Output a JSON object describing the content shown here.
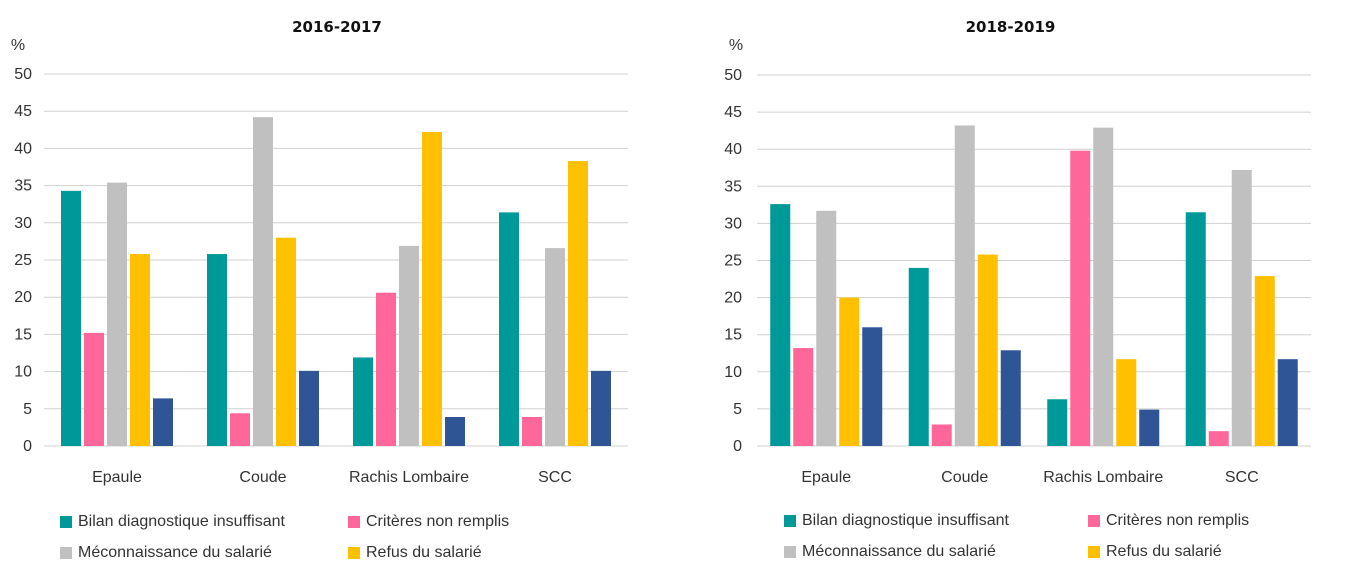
{
  "colors": {
    "bilan": "#009999",
    "criteres": "#ff6699",
    "meconnaissance": "#c0c0c0",
    "refus": "#ffc000",
    "fifth": "#2f5597",
    "grid": "#d0d0d0"
  },
  "chart_data": [
    {
      "type": "bar",
      "title": "2016-2017",
      "ylabel": "%",
      "ylim": [
        0,
        50
      ],
      "yticks": [
        "0",
        "5",
        "10",
        "15",
        "20",
        "25",
        "30",
        "35",
        "40",
        "45",
        "50"
      ],
      "grid": true,
      "legend_position": "bottom",
      "categories": [
        "Epaule",
        "Coude",
        "Rachis Lombaire",
        "SCC"
      ],
      "series": [
        {
          "name": "Bilan diagnostique insuffisant",
          "color": "#009999",
          "values": [
            34.3,
            25.8,
            11.9,
            31.4
          ]
        },
        {
          "name": "Critères non remplis",
          "color": "#ff6699",
          "values": [
            15.2,
            4.4,
            20.6,
            3.9
          ]
        },
        {
          "name": "Méconnaissance du salarié",
          "color": "#c0c0c0",
          "values": [
            35.4,
            44.2,
            26.9,
            26.6
          ]
        },
        {
          "name": "Refus du salarié",
          "color": "#ffc000",
          "values": [
            25.8,
            28.0,
            42.2,
            38.3
          ]
        },
        {
          "color": "#2f5597",
          "values": [
            6.4,
            10.1,
            3.9,
            10.1
          ]
        }
      ]
    },
    {
      "type": "bar",
      "title": "2018-2019",
      "ylabel": "%",
      "ylim": [
        0,
        50
      ],
      "yticks": [
        "0",
        "5",
        "10",
        "15",
        "20",
        "25",
        "30",
        "35",
        "40",
        "45",
        "50"
      ],
      "grid": true,
      "legend_position": "bottom",
      "categories": [
        "Epaule",
        "Coude",
        "Rachis Lombaire",
        "SCC"
      ],
      "series": [
        {
          "name": "Bilan diagnostique insuffisant",
          "color": "#009999",
          "values": [
            32.6,
            24.0,
            6.3,
            31.5
          ]
        },
        {
          "name": "Critères non remplis",
          "color": "#ff6699",
          "values": [
            13.2,
            2.9,
            39.8,
            2.0
          ]
        },
        {
          "name": "Méconnaissance du salarié",
          "color": "#c0c0c0",
          "values": [
            31.7,
            43.2,
            42.9,
            37.2
          ]
        },
        {
          "name": "Refus du salarié",
          "color": "#ffc000",
          "values": [
            20.0,
            25.8,
            11.7,
            22.9
          ]
        },
        {
          "color": "#2f5597",
          "values": [
            16.0,
            12.9,
            4.9,
            11.7
          ]
        }
      ]
    }
  ]
}
